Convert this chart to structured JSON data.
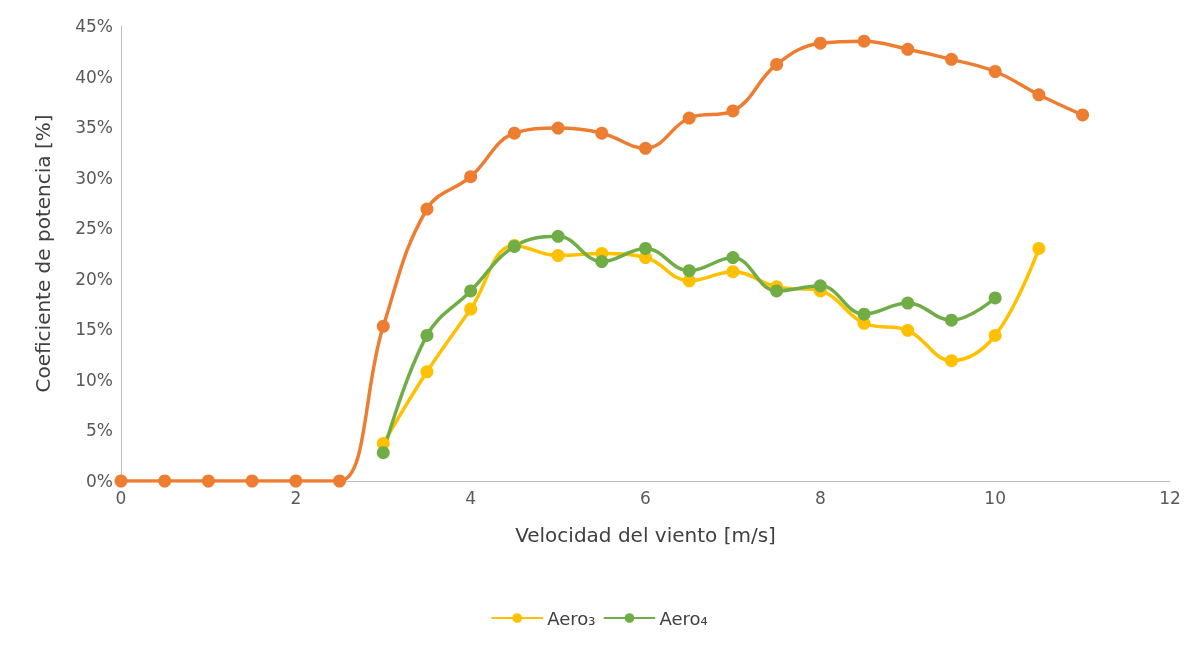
{
  "chart_data": {
    "type": "line",
    "xlabel": "Velocidad del viento [m/s]",
    "ylabel": "Coeficiente de potencia [%]",
    "x": [
      0,
      0.5,
      1,
      1.5,
      2,
      2.5,
      3,
      3.5,
      4,
      4.5,
      5,
      5.5,
      6,
      6.5,
      7,
      7.5,
      8,
      8.5,
      9,
      9.5,
      10,
      10.5,
      11
    ],
    "series": [
      {
        "color": "#ed7d31",
        "values": [
          0,
          0,
          0,
          0,
          0,
          0,
          15.3,
          26.9,
          30.1,
          34.4,
          34.9,
          34.4,
          32.9,
          35.9,
          36.6,
          41.2,
          43.3,
          43.5,
          42.7,
          41.7,
          40.5,
          38.2,
          36.2
        ]
      },
      {
        "name": "Aero₃",
        "color": "#ffc000",
        "x": [
          3,
          3.5,
          4,
          4.5,
          5,
          5.5,
          6,
          6.5,
          7,
          7.5,
          8,
          8.5,
          9,
          9.5,
          10,
          10.5
        ],
        "values": [
          3.7,
          10.8,
          17.0,
          23.3,
          22.3,
          22.5,
          22.1,
          19.8,
          20.7,
          19.2,
          18.8,
          15.6,
          14.9,
          11.9,
          14.4,
          23.0
        ]
      },
      {
        "name": "Aero₄",
        "color": "#70ad47",
        "x": [
          3,
          3.5,
          4,
          4.5,
          5,
          5.5,
          6,
          6.5,
          7,
          7.5,
          8,
          8.5,
          9,
          9.5,
          10
        ],
        "values": [
          2.8,
          14.4,
          18.8,
          23.2,
          24.2,
          21.7,
          23.0,
          20.8,
          22.1,
          18.8,
          19.3,
          16.5,
          17.6,
          15.9,
          18.1
        ]
      }
    ],
    "xlim": [
      0,
      12
    ],
    "xticks": [
      0,
      2,
      4,
      6,
      8,
      10,
      12
    ],
    "ylim": [
      0,
      45
    ],
    "yticks": [
      {
        "value": 0,
        "label": "0%"
      },
      {
        "value": 5,
        "label": "5%"
      },
      {
        "value": 10,
        "label": "10%"
      },
      {
        "value": 15,
        "label": "15%"
      },
      {
        "value": 20,
        "label": "20%"
      },
      {
        "value": 25,
        "label": "25%"
      },
      {
        "value": 30,
        "label": "30%"
      },
      {
        "value": 35,
        "label": "35%"
      },
      {
        "value": 40,
        "label": "40%"
      },
      {
        "value": 45,
        "label": "45%"
      }
    ],
    "grid": false,
    "legend": "bottom",
    "marker": "circle",
    "line_style": "solid"
  }
}
